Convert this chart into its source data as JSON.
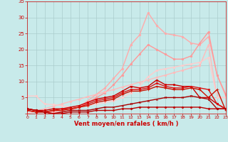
{
  "x": [
    0,
    1,
    2,
    3,
    4,
    5,
    6,
    7,
    8,
    9,
    10,
    11,
    12,
    13,
    14,
    15,
    16,
    17,
    18,
    19,
    20,
    21,
    22,
    23
  ],
  "lines": [
    {
      "y": [
        1.5,
        1.0,
        0.5,
        0.5,
        1.0,
        1.5,
        2.0,
        4.0,
        6.0,
        8.0,
        11.0,
        14.0,
        21.5,
        24.5,
        31.5,
        27.5,
        25.0,
        24.5,
        24.0,
        22.0,
        21.5,
        24.0,
        12.0,
        5.5
      ],
      "color": "#ffaaaa",
      "lw": 1.0,
      "marker": "o",
      "ms": 1.8
    },
    {
      "y": [
        1.5,
        1.0,
        0.5,
        0.0,
        0.5,
        1.0,
        2.0,
        3.5,
        5.0,
        6.5,
        9.0,
        12.0,
        15.5,
        18.5,
        21.5,
        20.0,
        18.5,
        17.0,
        17.0,
        18.0,
        22.0,
        25.5,
        12.0,
        6.0
      ],
      "color": "#ff9999",
      "lw": 1.0,
      "marker": "o",
      "ms": 1.8
    },
    {
      "y": [
        0.0,
        0.8,
        1.5,
        2.3,
        3.0,
        3.8,
        4.5,
        5.3,
        6.0,
        6.8,
        7.5,
        8.3,
        9.0,
        9.8,
        10.5,
        11.3,
        12.0,
        12.8,
        13.5,
        14.3,
        15.0,
        21.5,
        5.0,
        5.0
      ],
      "color": "#ffbbbb",
      "lw": 1.0,
      "marker": "o",
      "ms": 1.8
    },
    {
      "y": [
        5.5,
        5.5,
        3.0,
        2.8,
        2.5,
        2.0,
        2.0,
        2.5,
        3.0,
        3.5,
        4.0,
        5.0,
        6.5,
        8.5,
        11.5,
        13.5,
        14.0,
        14.5,
        15.0,
        15.5,
        16.0,
        17.5,
        5.0,
        5.0
      ],
      "color": "#ffcccc",
      "lw": 1.0,
      "marker": "o",
      "ms": 1.8
    },
    {
      "y": [
        1.5,
        1.0,
        1.0,
        1.5,
        1.5,
        2.0,
        2.5,
        3.5,
        4.5,
        5.0,
        5.5,
        7.0,
        8.5,
        8.0,
        8.5,
        10.5,
        9.0,
        9.0,
        8.5,
        8.5,
        5.0,
        5.0,
        3.0,
        1.5
      ],
      "color": "#cc0000",
      "lw": 1.0,
      "marker": "s",
      "ms": 2.0
    },
    {
      "y": [
        1.0,
        0.5,
        0.5,
        1.0,
        1.5,
        1.5,
        2.0,
        3.0,
        4.0,
        4.5,
        5.0,
        6.5,
        7.5,
        7.5,
        8.0,
        9.5,
        8.5,
        8.0,
        8.0,
        8.5,
        8.0,
        7.5,
        3.0,
        1.5
      ],
      "color": "#dd1111",
      "lw": 1.0,
      "marker": "o",
      "ms": 1.8
    },
    {
      "y": [
        1.0,
        0.5,
        0.5,
        1.0,
        1.0,
        1.5,
        2.0,
        2.5,
        3.5,
        4.0,
        4.5,
        6.0,
        7.0,
        7.0,
        7.5,
        8.5,
        8.0,
        7.5,
        7.5,
        8.0,
        7.5,
        5.0,
        7.5,
        1.0
      ],
      "color": "#cc1100",
      "lw": 1.0,
      "marker": "+",
      "ms": 2.5
    },
    {
      "y": [
        1.5,
        1.0,
        0.5,
        0.0,
        0.5,
        1.0,
        1.0,
        1.0,
        1.5,
        2.0,
        2.0,
        2.5,
        3.0,
        3.5,
        4.0,
        4.5,
        5.0,
        5.0,
        5.0,
        5.5,
        5.0,
        4.5,
        1.5,
        1.5
      ],
      "color": "#aa0000",
      "lw": 1.0,
      "marker": "x",
      "ms": 2.0
    },
    {
      "y": [
        1.5,
        1.0,
        0.5,
        0.0,
        0.0,
        0.5,
        0.5,
        0.5,
        1.0,
        1.0,
        1.0,
        1.5,
        1.5,
        2.0,
        2.0,
        2.0,
        2.0,
        2.0,
        2.0,
        2.0,
        2.0,
        1.5,
        1.5,
        1.5
      ],
      "color": "#bb0000",
      "lw": 1.0,
      "marker": "D",
      "ms": 1.5
    }
  ],
  "xlabel": "Vent moyen/en rafales ( km/h )",
  "xlim": [
    0,
    23
  ],
  "ylim": [
    0,
    35
  ],
  "yticks": [
    0,
    5,
    10,
    15,
    20,
    25,
    30,
    35
  ],
  "xticks": [
    0,
    1,
    2,
    3,
    4,
    5,
    6,
    7,
    8,
    9,
    10,
    11,
    12,
    13,
    14,
    15,
    16,
    17,
    18,
    19,
    20,
    21,
    22,
    23
  ],
  "bg_color": "#c8eaea",
  "grid_color": "#aacccc",
  "tick_color": "#cc0000",
  "label_color": "#cc0000"
}
